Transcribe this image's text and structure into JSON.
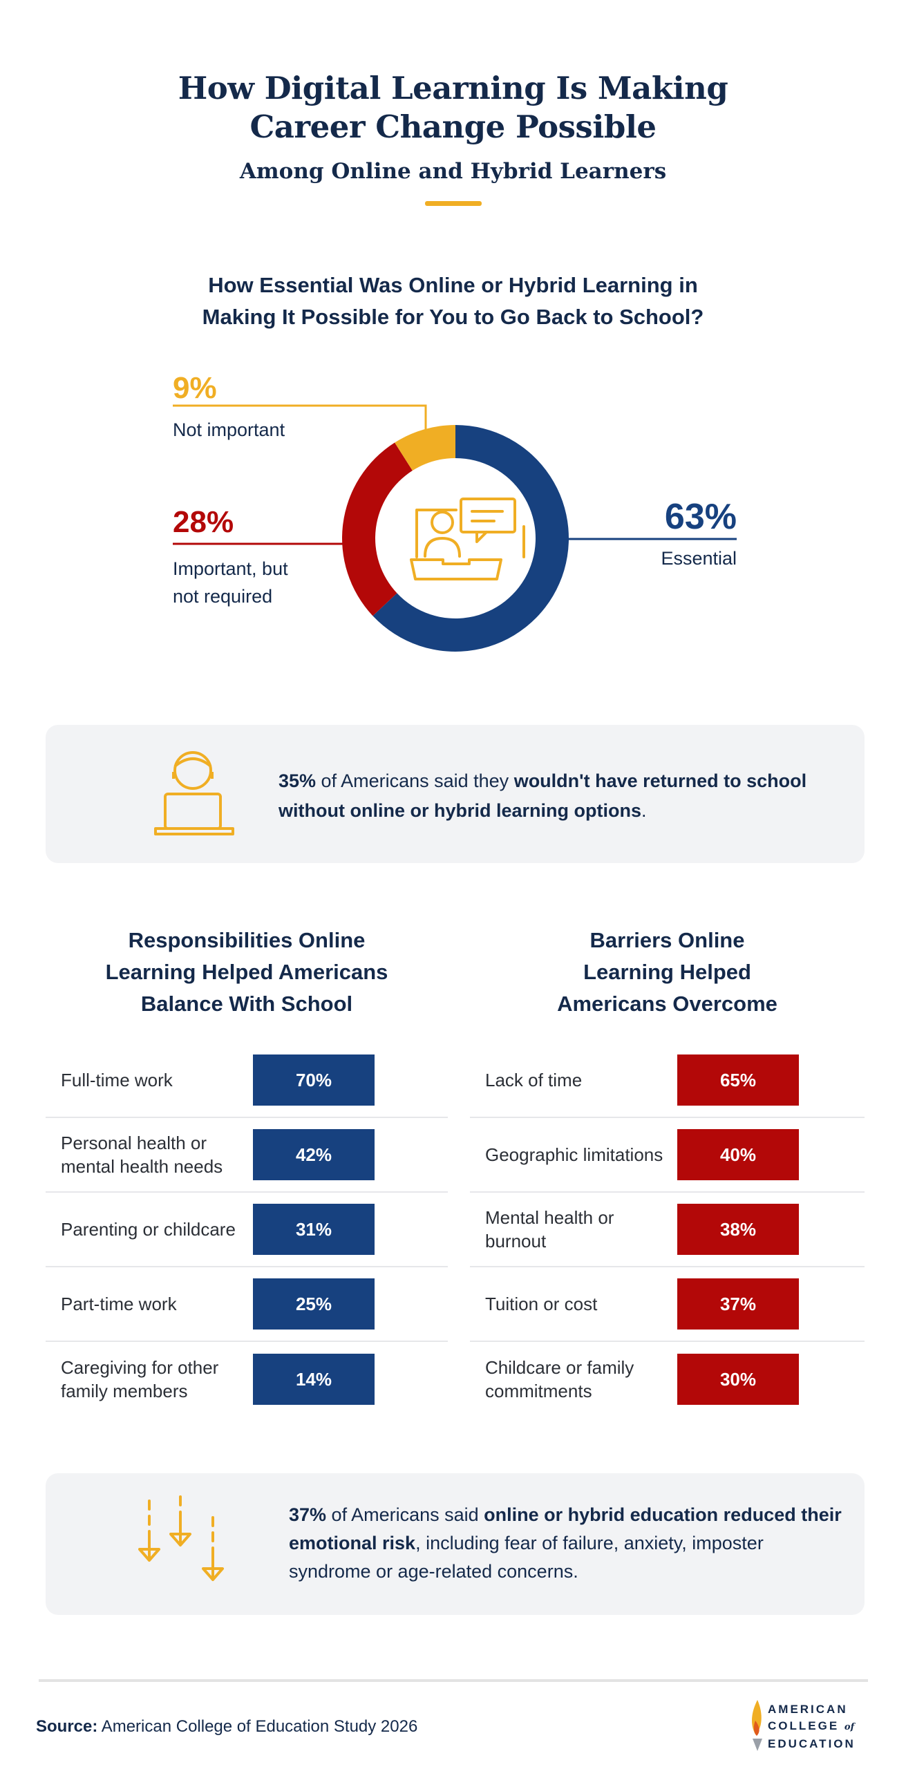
{
  "header": {
    "title_line1": "How Digital Learning Is Making",
    "title_line2": "Career Change Possible",
    "subtitle": "Among Online and Hybrid Learners"
  },
  "question": {
    "line1": "How Essential Was Online or Hybrid Learning in",
    "line2": "Making It Possible for You to Go Back to School?"
  },
  "chart_data": {
    "type": "pie",
    "title": "How Essential Was Online or Hybrid Learning in Making It Possible for You to Go Back to School?",
    "slices": [
      {
        "label": "Essential",
        "value": 63,
        "display": "63%",
        "color": "#17417f"
      },
      {
        "label_line1": "Important, but",
        "label_line2": "not required",
        "label": "Important, but not required",
        "value": 28,
        "display": "28%",
        "color": "#b30808"
      },
      {
        "label": "Not important",
        "value": 9,
        "display": "9%",
        "color": "#f0ae24"
      }
    ]
  },
  "callout1": {
    "pct": "35%",
    "pre": " of Americans said they ",
    "bold": "wouldn't have returned to school without online or hybrid learning options",
    "post": "."
  },
  "responsibilities": {
    "heading_line1": "Responsibilities Online",
    "heading_line2": "Learning Helped Americans",
    "heading_line3": "Balance With School",
    "color": "#17417f",
    "rows": [
      {
        "label": "Full-time work",
        "value": "70%"
      },
      {
        "label": "Personal health or mental health needs",
        "value": "42%"
      },
      {
        "label": "Parenting or childcare",
        "value": "31%"
      },
      {
        "label": "Part-time work",
        "value": "25%"
      },
      {
        "label": "Caregiving for other family members",
        "value": "14%"
      }
    ]
  },
  "barriers": {
    "heading_line1": "Barriers Online",
    "heading_line2": "Learning Helped",
    "heading_line3": "Americans Overcome",
    "color": "#b30808",
    "rows": [
      {
        "label": "Lack of time",
        "value": "65%"
      },
      {
        "label": "Geographic limitations",
        "value": "40%"
      },
      {
        "label": "Mental health or burnout",
        "value": "38%"
      },
      {
        "label": "Tuition or cost",
        "value": "37%"
      },
      {
        "label": "Childcare or family commitments",
        "value": "30%"
      }
    ]
  },
  "callout2": {
    "pct": "37%",
    "pre": " of Americans said ",
    "bold": "online or hybrid education reduced their emotional risk",
    "post": ", including fear of failure, anxiety, imposter syndrome or age-related concerns."
  },
  "footer": {
    "source_label": "Source:",
    "source_text": " American College of Education Study 2026",
    "logo_line1": "AMERICAN",
    "logo_line2": "COLLEGE",
    "logo_of": "of",
    "logo_line3": "EDUCATION"
  }
}
